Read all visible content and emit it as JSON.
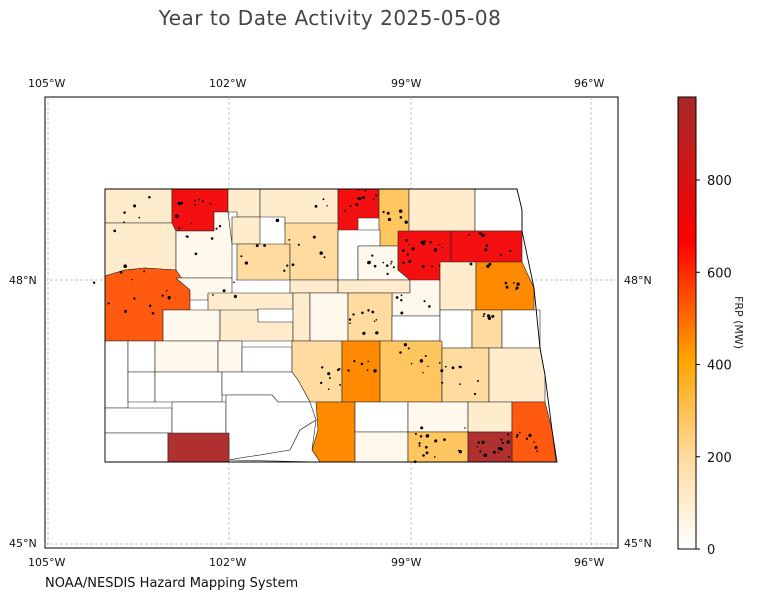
{
  "title": "Year to Date Activity 2025-05-08",
  "credit": "NOAA/NESDIS Hazard Mapping System",
  "map": {
    "lon_ticks": [
      "105°W",
      "102°W",
      "99°W",
      "96°W"
    ],
    "lat_ticks": [
      "48°N",
      "45°N"
    ],
    "colors": {
      "none": "#ffffff",
      "very_low": "#fff8ec",
      "low": "#ffeccc",
      "low_mid": "#ffdba0",
      "mid": "#ffc55e",
      "mid_high": "#ffa400",
      "orange": "#ff8a00",
      "orange_red": "#ff5a10",
      "red": "#f41010",
      "dark_red": "#b03030",
      "border": "#222222",
      "grid": "#b0b0b0"
    }
  },
  "colorbar": {
    "label": "FRP (MW)",
    "ticks": [
      "0",
      "200",
      "400",
      "600",
      "800"
    ],
    "max": 980,
    "stops": [
      "#ffffff",
      "#ffdba0",
      "#ffa400",
      "#ff0000",
      "#a52a2a"
    ]
  }
}
